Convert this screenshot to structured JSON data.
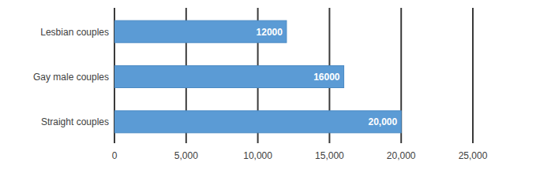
{
  "chart_data": {
    "type": "bar",
    "orientation": "horizontal",
    "categories": [
      "Lesbian couples",
      "Gay male couples",
      "Straight couples"
    ],
    "values": [
      12000,
      16000,
      20000
    ],
    "value_labels": [
      "12000",
      "16000",
      "20,000"
    ],
    "color": "#5b9bd5",
    "xlim": [
      0,
      25000
    ],
    "xticks": [
      0,
      {
        "value": 5000,
        "label": "5,000"
      },
      {
        "value": 10000,
        "label": "10,000"
      },
      {
        "value": 15000,
        "label": "15,000"
      },
      {
        "value": 20000,
        "label": "20,000"
      },
      {
        "value": 25000,
        "label": "25,000"
      }
    ],
    "grid": true,
    "data_labels": true
  }
}
